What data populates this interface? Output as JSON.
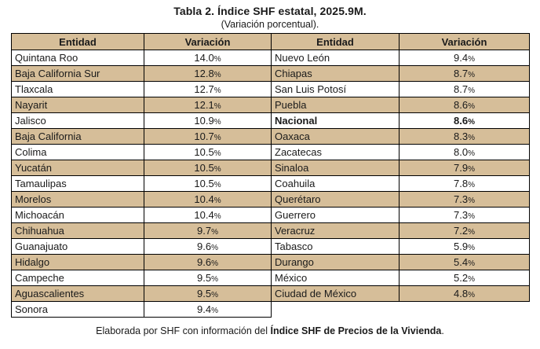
{
  "title": "Tabla 2. Índice SHF estatal, 2025.9M.",
  "subtitle": "(Variación porcentual).",
  "columns": [
    "Entidad",
    "Variación",
    "Entidad",
    "Variación"
  ],
  "rows": [
    {
      "left": {
        "entity": "Quintana Roo",
        "value": "14.0%"
      },
      "right": {
        "entity": "Nuevo León",
        "value": "9.4%"
      }
    },
    {
      "left": {
        "entity": "Baja California Sur",
        "value": "12.8%"
      },
      "right": {
        "entity": "Chiapas",
        "value": "8.7%"
      }
    },
    {
      "left": {
        "entity": "Tlaxcala",
        "value": "12.7%"
      },
      "right": {
        "entity": "San Luis Potosí",
        "value": "8.7%"
      }
    },
    {
      "left": {
        "entity": "Nayarit",
        "value": "12.1%"
      },
      "right": {
        "entity": "Puebla",
        "value": "8.6%"
      }
    },
    {
      "left": {
        "entity": "Jalisco",
        "value": "10.9%"
      },
      "right": {
        "entity": "Nacional",
        "value": "8.6%",
        "bold": true
      }
    },
    {
      "left": {
        "entity": "Baja California",
        "value": "10.7%"
      },
      "right": {
        "entity": "Oaxaca",
        "value": "8.3%"
      }
    },
    {
      "left": {
        "entity": "Colima",
        "value": "10.5%"
      },
      "right": {
        "entity": "Zacatecas",
        "value": "8.0%"
      }
    },
    {
      "left": {
        "entity": "Yucatán",
        "value": "10.5%"
      },
      "right": {
        "entity": "Sinaloa",
        "value": "7.9%"
      }
    },
    {
      "left": {
        "entity": "Tamaulipas",
        "value": "10.5%"
      },
      "right": {
        "entity": "Coahuila",
        "value": "7.8%"
      }
    },
    {
      "left": {
        "entity": "Morelos",
        "value": "10.4%"
      },
      "right": {
        "entity": "Querétaro",
        "value": "7.3%"
      }
    },
    {
      "left": {
        "entity": "Michoacán",
        "value": "10.4%"
      },
      "right": {
        "entity": "Guerrero",
        "value": "7.3%"
      }
    },
    {
      "left": {
        "entity": "Chihuahua",
        "value": "9.7%"
      },
      "right": {
        "entity": "Veracruz",
        "value": "7.2%"
      }
    },
    {
      "left": {
        "entity": "Guanajuato",
        "value": "9.6%"
      },
      "right": {
        "entity": "Tabasco",
        "value": "5.9%"
      }
    },
    {
      "left": {
        "entity": "Hidalgo",
        "value": "9.6%"
      },
      "right": {
        "entity": "Durango",
        "value": "5.4%"
      }
    },
    {
      "left": {
        "entity": "Campeche",
        "value": "9.5%"
      },
      "right": {
        "entity": "México",
        "value": "5.2%"
      }
    },
    {
      "left": {
        "entity": "Aguascalientes",
        "value": "9.5%"
      },
      "right": {
        "entity": "Ciudad de México",
        "value": "4.8%"
      }
    },
    {
      "left": {
        "entity": "Sonora",
        "value": "9.4%"
      },
      "right": null
    }
  ],
  "footer": {
    "prefix": "Elaborada por SHF con información del ",
    "bold": "Índice SHF de Precios de la Vivienda",
    "suffix": "."
  },
  "colors": {
    "stripe_bg": "#d6be99",
    "header_bg": "#d6be99",
    "border": "#000000",
    "text": "#1a1a1a"
  }
}
